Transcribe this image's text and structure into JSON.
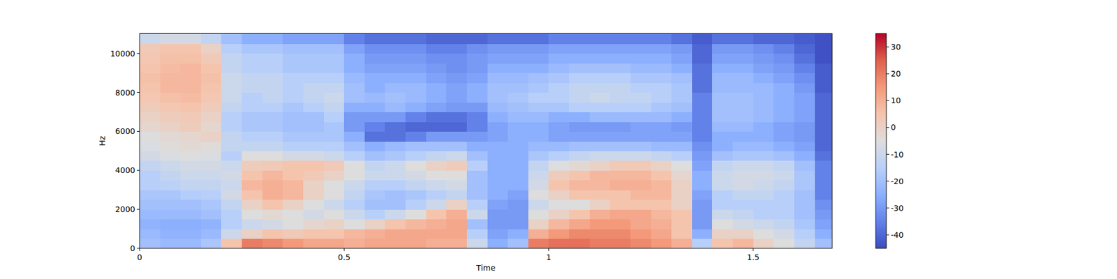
{
  "chart_data": {
    "type": "heatmap",
    "xlabel": "Time",
    "ylabel": "Hz",
    "xlim": [
      0,
      1.693
    ],
    "xticks": [
      0,
      0.5,
      1,
      1.5
    ],
    "ylim": [
      0,
      11025
    ],
    "yticks": [
      0,
      2000,
      4000,
      6000,
      8000,
      10000
    ],
    "color_range": [
      -45,
      35
    ],
    "color_ticks": [
      -40,
      -30,
      -20,
      -10,
      0,
      10,
      20,
      30
    ],
    "x": [
      0.025,
      0.075,
      0.125,
      0.175,
      0.225,
      0.275,
      0.325,
      0.375,
      0.425,
      0.475,
      0.525,
      0.575,
      0.625,
      0.675,
      0.725,
      0.775,
      0.825,
      0.875,
      0.925,
      0.975,
      1.025,
      1.075,
      1.125,
      1.175,
      1.225,
      1.275,
      1.325,
      1.375,
      1.425,
      1.475,
      1.525,
      1.575,
      1.625,
      1.675
    ],
    "y": [
      250,
      750,
      1250,
      1750,
      2250,
      2750,
      3250,
      3750,
      4250,
      4750,
      5250,
      5750,
      6250,
      6750,
      7250,
      7750,
      8250,
      8750,
      9250,
      9750,
      10250,
      10750
    ],
    "values": [
      [
        -20,
        -22,
        -24,
        -22,
        -20,
        -18,
        -15,
        -15,
        -12,
        -8,
        -6,
        -5,
        -2,
        0,
        2,
        4,
        5,
        6,
        5,
        4,
        3,
        -10
      ],
      [
        -22,
        -24,
        -25,
        -22,
        -20,
        -18,
        -14,
        -12,
        -10,
        -6,
        -4,
        -3,
        0,
        2,
        4,
        6,
        8,
        8,
        7,
        6,
        5,
        -8
      ],
      [
        -22,
        -24,
        -25,
        -22,
        -20,
        -16,
        -12,
        -10,
        -8,
        -5,
        -3,
        -2,
        2,
        3,
        5,
        7,
        8,
        8,
        8,
        6,
        5,
        -8
      ],
      [
        -18,
        -22,
        -24,
        -20,
        -18,
        -15,
        -12,
        -10,
        -8,
        -6,
        -4,
        0,
        -2,
        0,
        2,
        4,
        5,
        6,
        5,
        3,
        0,
        -12
      ],
      [
        5,
        -10,
        -15,
        -15,
        -12,
        -8,
        -10,
        -8,
        -10,
        -15,
        -12,
        -12,
        -15,
        -15,
        -12,
        -10,
        -10,
        -10,
        -12,
        -12,
        -15,
        -20
      ],
      [
        20,
        0,
        -10,
        -5,
        0,
        5,
        8,
        5,
        2,
        -5,
        -12,
        -15,
        -18,
        -18,
        -15,
        -15,
        -12,
        -12,
        -15,
        -15,
        -18,
        -25
      ],
      [
        18,
        5,
        -8,
        -3,
        5,
        10,
        10,
        8,
        3,
        -5,
        -12,
        -15,
        -18,
        -18,
        -15,
        -12,
        -12,
        -12,
        -15,
        -15,
        -18,
        -25
      ],
      [
        15,
        3,
        -5,
        -5,
        0,
        8,
        8,
        5,
        5,
        -8,
        -15,
        -18,
        -20,
        -20,
        -18,
        -15,
        -15,
        -15,
        -18,
        -18,
        -20,
        -28
      ],
      [
        12,
        5,
        -2,
        -8,
        -5,
        0,
        0,
        3,
        5,
        -8,
        -15,
        -18,
        -20,
        -20,
        -15,
        -12,
        -12,
        -15,
        -18,
        -18,
        -20,
        -28
      ],
      [
        12,
        5,
        0,
        -5,
        -10,
        -5,
        -5,
        0,
        3,
        -10,
        -15,
        -18,
        -18,
        -15,
        -12,
        -10,
        -12,
        -15,
        -18,
        -18,
        -20,
        -28
      ],
      [
        10,
        8,
        -5,
        -10,
        -15,
        -12,
        -10,
        -5,
        -5,
        -15,
        -20,
        -25,
        -30,
        -30,
        -25,
        -20,
        -20,
        -22,
        -25,
        -25,
        -28,
        -35
      ],
      [
        12,
        10,
        0,
        -15,
        -20,
        -18,
        -15,
        -10,
        -12,
        -20,
        -25,
        -38,
        -35,
        -30,
        -25,
        -22,
        -25,
        -25,
        -28,
        -30,
        -32,
        -38
      ],
      [
        12,
        12,
        5,
        -10,
        -20,
        -20,
        -15,
        -10,
        -10,
        -18,
        -22,
        -38,
        -38,
        -30,
        -22,
        -20,
        -22,
        -25,
        -28,
        -30,
        -32,
        -38
      ],
      [
        12,
        12,
        8,
        -5,
        -15,
        -18,
        -12,
        -8,
        -5,
        -15,
        -20,
        -35,
        -40,
        -35,
        -25,
        -22,
        -22,
        -25,
        -28,
        -30,
        -32,
        -38
      ],
      [
        10,
        12,
        10,
        5,
        -10,
        -15,
        -10,
        -5,
        0,
        -12,
        -20,
        -30,
        -40,
        -38,
        -28,
        -25,
        -25,
        -28,
        -30,
        -32,
        -35,
        -40
      ],
      [
        10,
        12,
        12,
        10,
        0,
        -12,
        -8,
        -5,
        2,
        -10,
        -20,
        -30,
        -40,
        -38,
        -30,
        -28,
        -28,
        -30,
        -32,
        -32,
        -35,
        -40
      ],
      [
        -10,
        -15,
        -20,
        -10,
        -15,
        -20,
        -20,
        -20,
        -15,
        -20,
        -25,
        -30,
        -35,
        -35,
        -30,
        -25,
        -25,
        -28,
        -30,
        -30,
        -32,
        -40
      ],
      [
        -25,
        -28,
        -30,
        -30,
        -28,
        -25,
        -25,
        -25,
        -25,
        -25,
        -25,
        -28,
        -28,
        -25,
        -22,
        -20,
        -20,
        -22,
        -25,
        -28,
        -30,
        -38
      ],
      [
        -20,
        -25,
        -30,
        -30,
        -30,
        -28,
        -25,
        -25,
        -25,
        -25,
        -25,
        -25,
        -25,
        -22,
        -20,
        -18,
        -20,
        -22,
        -25,
        -28,
        -30,
        -38
      ],
      [
        20,
        10,
        0,
        -5,
        -10,
        -5,
        -8,
        -10,
        -12,
        -18,
        -22,
        -25,
        -25,
        -22,
        -18,
        -15,
        -18,
        -20,
        -25,
        -28,
        -30,
        -38
      ],
      [
        22,
        15,
        8,
        0,
        -5,
        0,
        5,
        2,
        -5,
        -15,
        -22,
        -28,
        -28,
        -25,
        -18,
        -15,
        -15,
        -18,
        -22,
        -25,
        -28,
        -35
      ],
      [
        22,
        18,
        12,
        5,
        -5,
        5,
        8,
        5,
        -3,
        -12,
        -20,
        -28,
        -30,
        -25,
        -15,
        -12,
        -12,
        -15,
        -20,
        -25,
        -28,
        -35
      ],
      [
        20,
        18,
        15,
        10,
        0,
        5,
        8,
        8,
        0,
        -10,
        -20,
        -28,
        -30,
        -22,
        -15,
        -10,
        -12,
        -15,
        -20,
        -25,
        -28,
        -35
      ],
      [
        20,
        18,
        15,
        12,
        5,
        5,
        10,
        8,
        3,
        -10,
        -20,
        -28,
        -30,
        -22,
        -15,
        -12,
        -12,
        -15,
        -20,
        -25,
        -28,
        -35
      ],
      [
        18,
        15,
        12,
        12,
        5,
        8,
        10,
        8,
        3,
        -10,
        -20,
        -28,
        -28,
        -22,
        -15,
        -12,
        -15,
        -18,
        -22,
        -25,
        -28,
        -35
      ],
      [
        15,
        12,
        10,
        8,
        5,
        8,
        8,
        5,
        0,
        -12,
        -22,
        -28,
        -28,
        -22,
        -18,
        -15,
        -15,
        -18,
        -22,
        -25,
        -28,
        -35
      ],
      [
        10,
        5,
        5,
        5,
        0,
        0,
        0,
        -2,
        -5,
        -15,
        -22,
        -28,
        -30,
        -25,
        -20,
        -18,
        -18,
        -20,
        -25,
        -28,
        -30,
        -38
      ],
      [
        -15,
        -25,
        -30,
        -30,
        -30,
        -28,
        -25,
        -25,
        -28,
        -30,
        -32,
        -35,
        -35,
        -35,
        -35,
        -35,
        -38,
        -38,
        -38,
        -40,
        -40,
        -42
      ],
      [
        5,
        0,
        -5,
        -10,
        -15,
        -15,
        -10,
        -10,
        -12,
        -20,
        -25,
        -25,
        -22,
        -20,
        -20,
        -20,
        -22,
        -22,
        -25,
        -28,
        -30,
        -38
      ],
      [
        8,
        0,
        -8,
        -12,
        -15,
        -12,
        -8,
        -8,
        -10,
        -18,
        -22,
        -25,
        -22,
        -20,
        -20,
        -20,
        -22,
        -22,
        -25,
        -28,
        -30,
        -38
      ],
      [
        0,
        -5,
        -10,
        -15,
        -15,
        -12,
        -10,
        -8,
        -10,
        -18,
        -22,
        -25,
        -25,
        -22,
        -22,
        -22,
        -22,
        -25,
        -28,
        -30,
        -32,
        -40
      ],
      [
        -5,
        -8,
        -12,
        -15,
        -15,
        -15,
        -12,
        -10,
        -12,
        -20,
        -25,
        -28,
        -28,
        -25,
        -25,
        -25,
        -25,
        -28,
        -30,
        -32,
        -35,
        -40
      ],
      [
        -12,
        -15,
        -18,
        -20,
        -20,
        -20,
        -18,
        -18,
        -20,
        -25,
        -28,
        -30,
        -30,
        -28,
        -28,
        -28,
        -30,
        -32,
        -35,
        -38,
        -40,
        -42
      ],
      [
        -20,
        -25,
        -28,
        -30,
        -32,
        -35,
        -35,
        -35,
        -35,
        -38,
        -40,
        -40,
        -40,
        -40,
        -40,
        -40,
        -42,
        -42,
        -42,
        -44,
        -44,
        -44
      ]
    ]
  }
}
